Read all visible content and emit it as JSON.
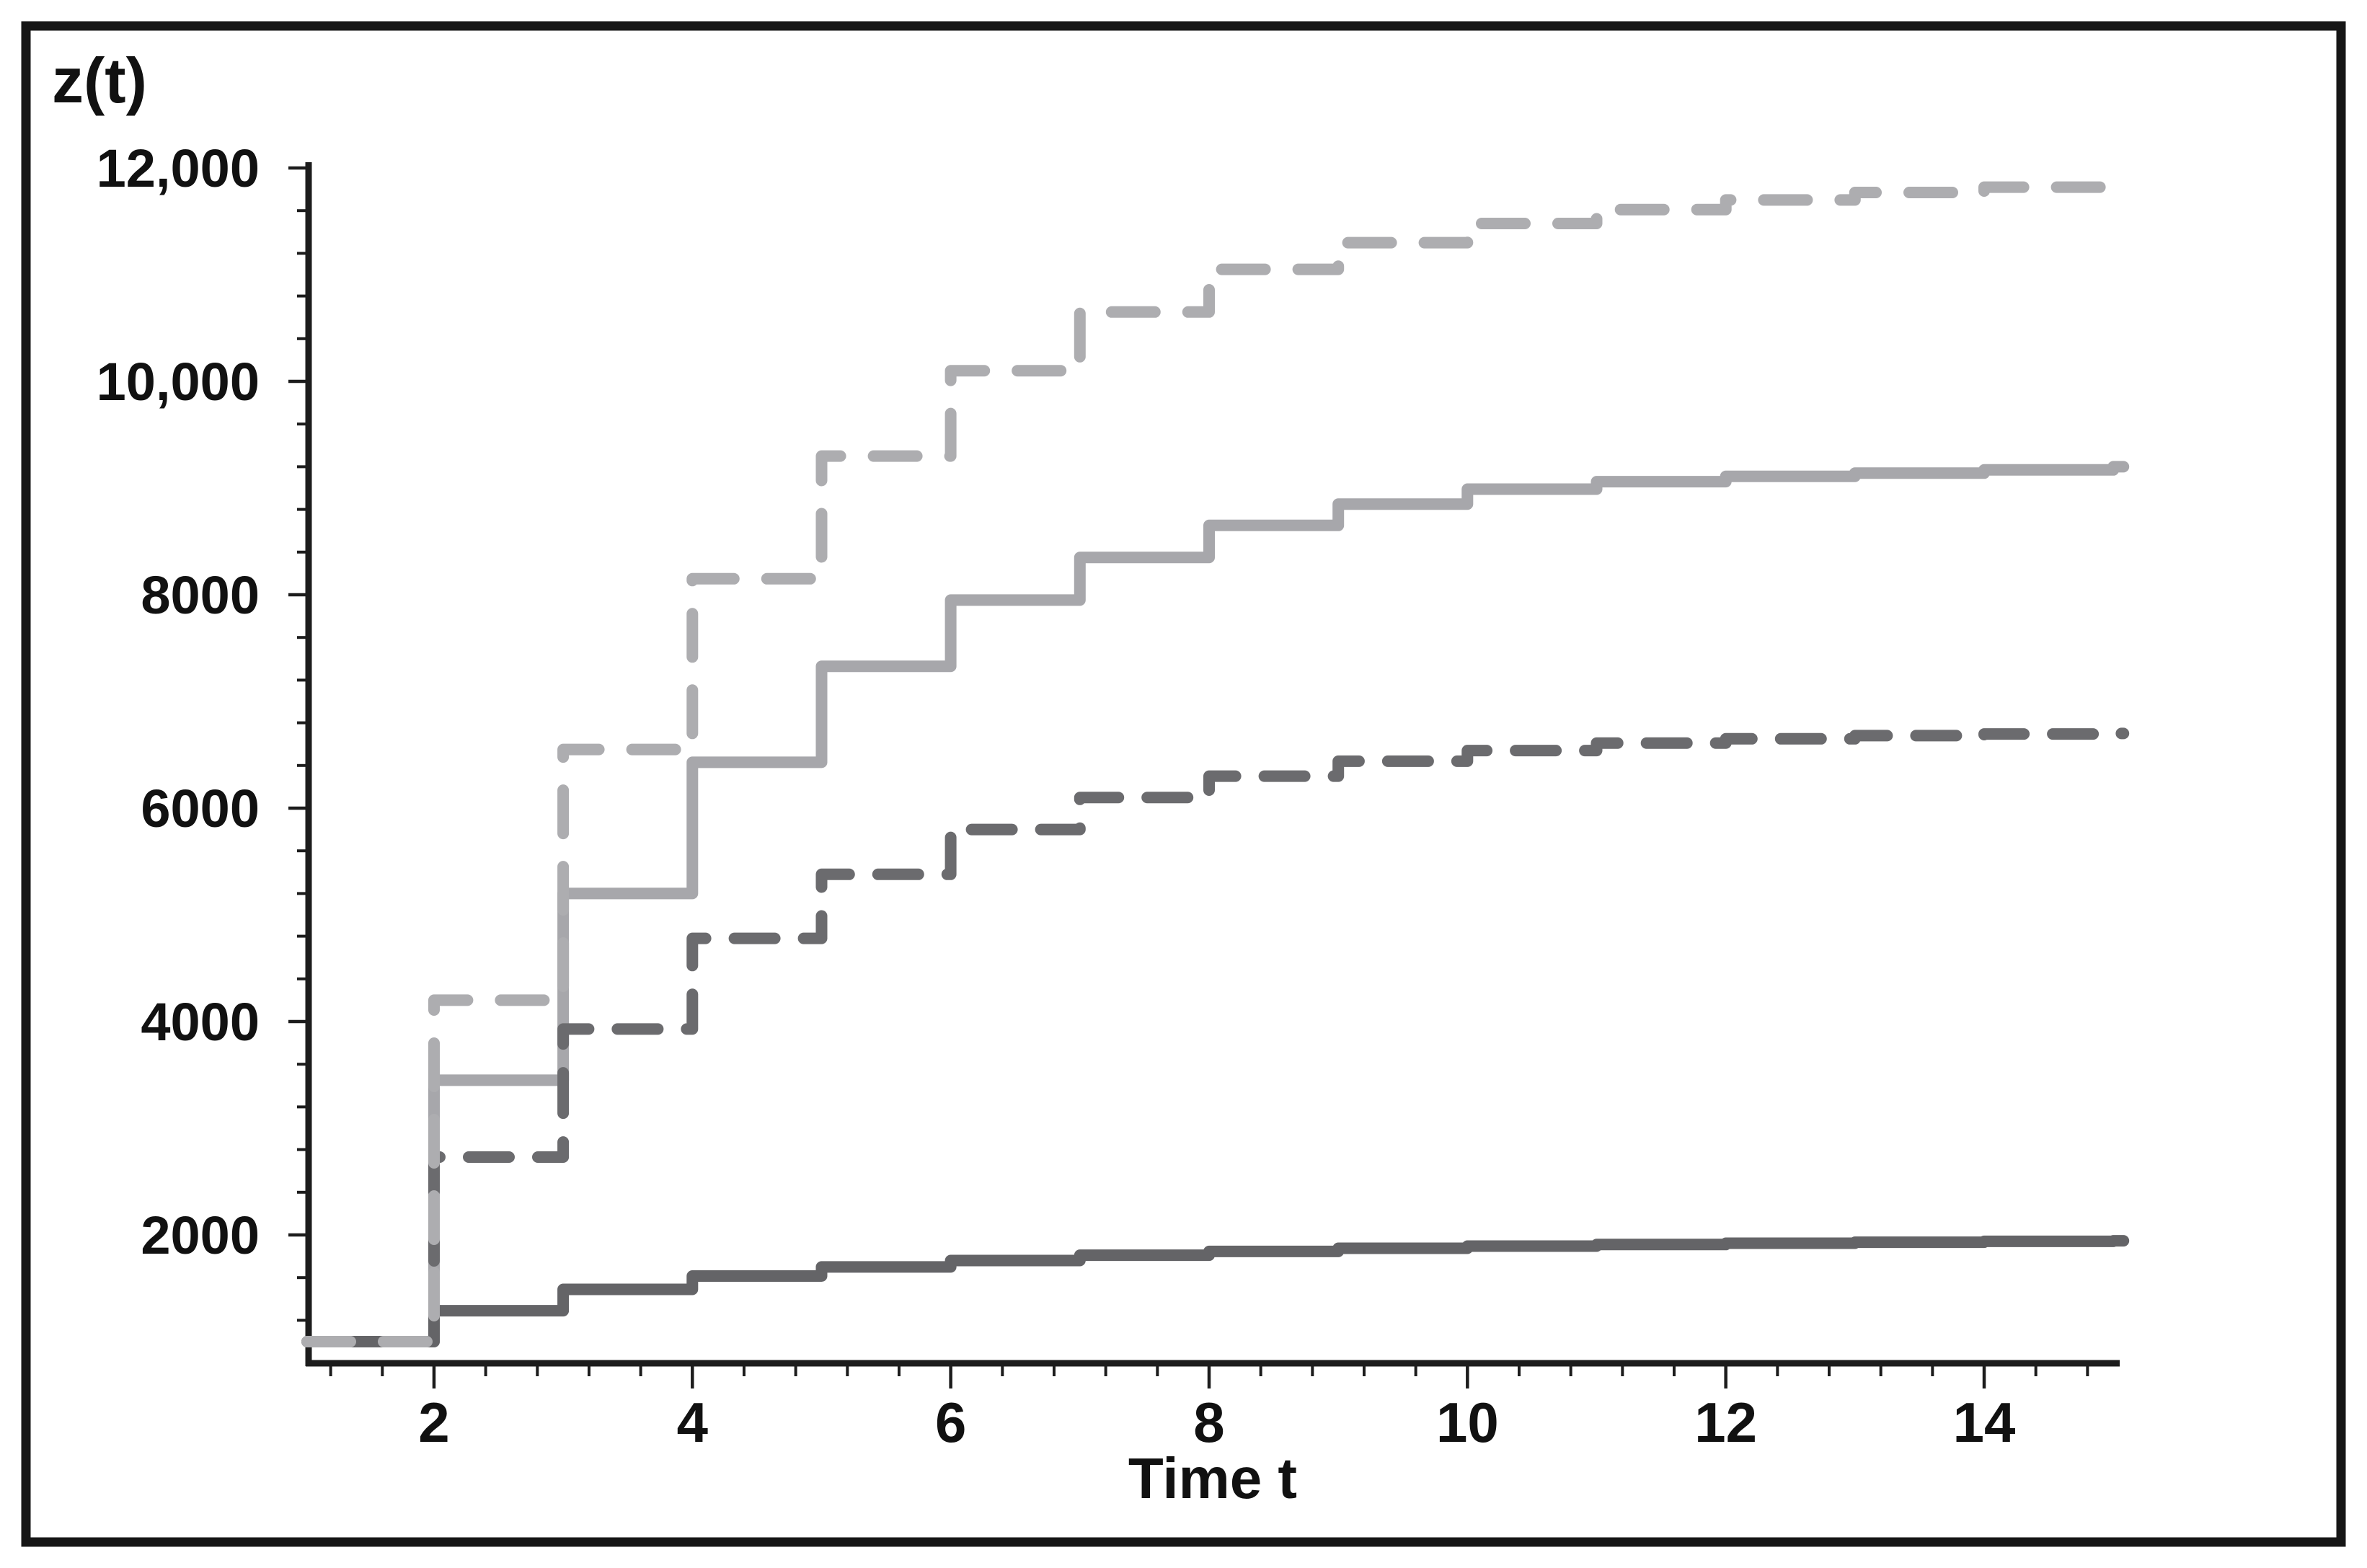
{
  "figure": {
    "y_axis_label": "z(t)",
    "x_axis_label": "Time t",
    "background": "#ffffff",
    "frame_color": "#161616",
    "axis_color": "#1c1c1c",
    "text_color": "#111111"
  },
  "chart_data": {
    "type": "line",
    "subtype": "step",
    "title": "",
    "xlabel": "Time t",
    "ylabel": "z(t)",
    "grid": false,
    "legend_position": "none",
    "xlim": [
      1,
      15
    ],
    "ylim": [
      800,
      12200
    ],
    "x": [
      1,
      2,
      3,
      4,
      5,
      6,
      7,
      8,
      9,
      10,
      11,
      12,
      13,
      14,
      15
    ],
    "x_ticks_major": [
      2,
      4,
      6,
      8,
      10,
      12,
      14
    ],
    "x_tick_labels": [
      "2",
      "4",
      "6",
      "8",
      "10",
      "12",
      "14"
    ],
    "x_minor_step": 0.4,
    "y_ticks_major": [
      2000,
      4000,
      6000,
      8000,
      10000,
      12000
    ],
    "y_tick_labels": [
      "2000",
      "4000",
      "6000",
      "8000",
      "10,000",
      "12,000"
    ],
    "y_minor_step": 400,
    "series": [
      {
        "name": "upper-solid-light",
        "style": "solid",
        "color": "#a7a7ab",
        "values": [
          1000,
          3450,
          5200,
          6430,
          7330,
          7950,
          8350,
          8650,
          8850,
          8990,
          9060,
          9110,
          9140,
          9170,
          9200
        ]
      },
      {
        "name": "lower-dashed-dark",
        "style": "dashed",
        "color": "#6b6b6e",
        "values": [
          1000,
          2730,
          3930,
          4780,
          5380,
          5800,
          6100,
          6300,
          6440,
          6540,
          6610,
          6650,
          6680,
          6695,
          6700
        ]
      },
      {
        "name": "bottom-solid-dark",
        "style": "solid",
        "color": "#646467",
        "values": [
          1000,
          1290,
          1490,
          1615,
          1700,
          1760,
          1810,
          1845,
          1875,
          1895,
          1910,
          1922,
          1932,
          1940,
          1945
        ]
      },
      {
        "name": "top-dashed-light",
        "style": "dashed",
        "color": "#adadb0",
        "values": [
          1000,
          4200,
          6550,
          8150,
          9300,
          10100,
          10650,
          11050,
          11300,
          11480,
          11610,
          11700,
          11770,
          11820,
          11860
        ]
      }
    ]
  }
}
